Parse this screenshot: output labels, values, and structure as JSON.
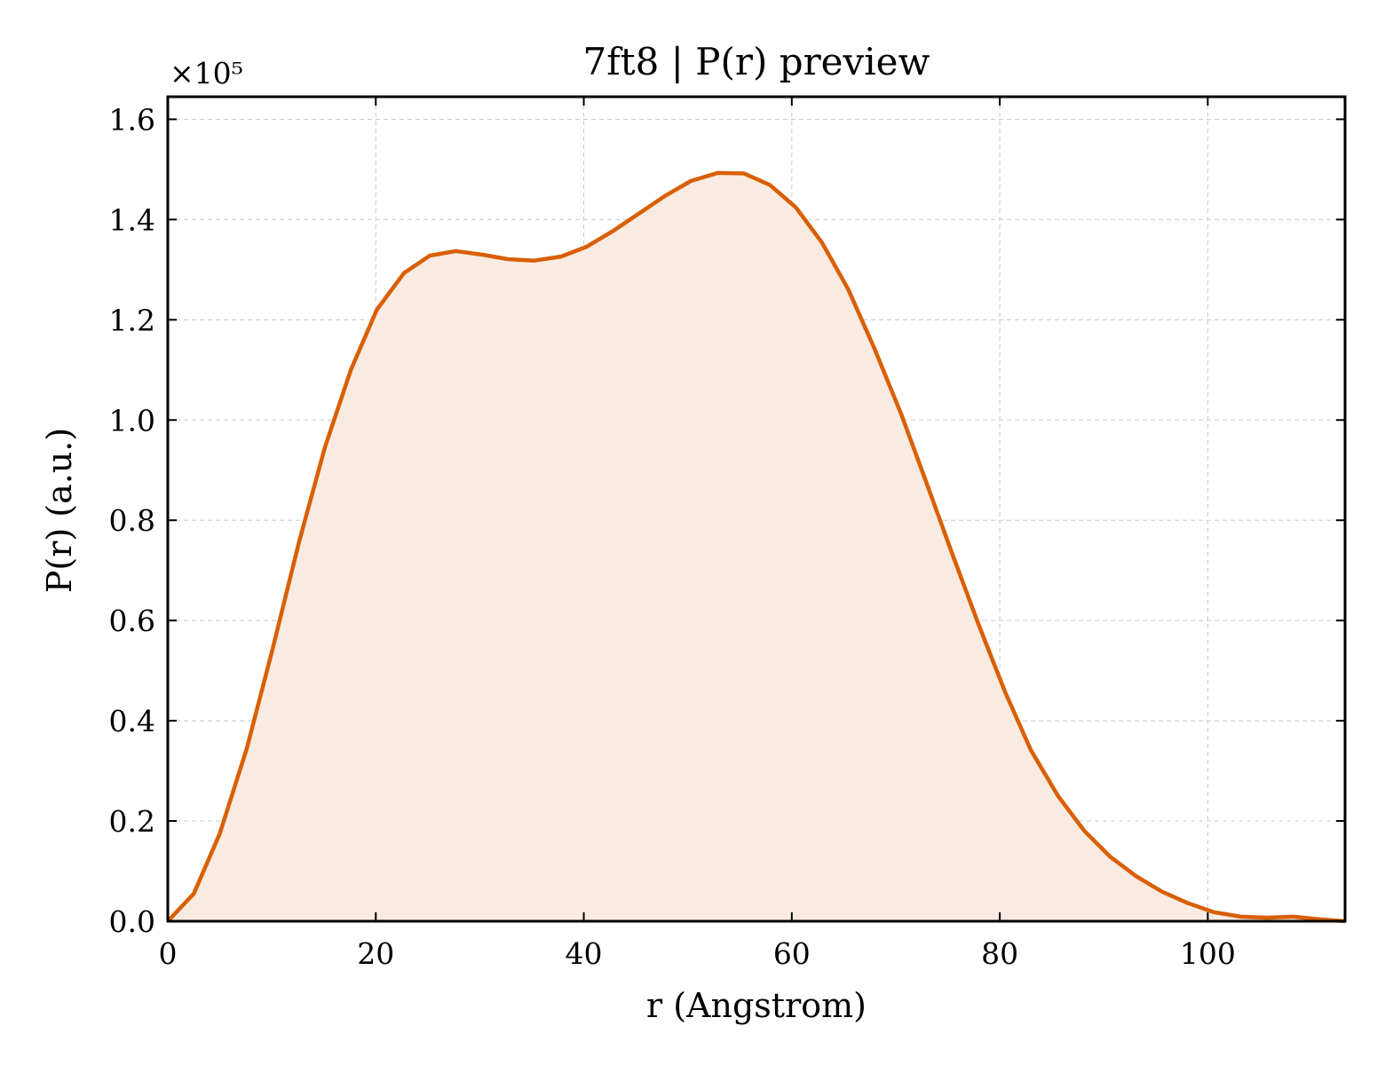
{
  "chart_data": {
    "type": "area",
    "title": "7ft8 | P(r) preview",
    "xlabel": "r (Angstrom)",
    "ylabel": "P(r) (a.u.)",
    "y_offset_label": "×10⁵",
    "y_scale": 100000,
    "xlim": [
      0,
      113.2
    ],
    "ylim": [
      0,
      1.645
    ],
    "x_ticks": [
      0,
      20,
      40,
      60,
      80,
      100
    ],
    "x_tick_labels": [
      "0",
      "20",
      "40",
      "60",
      "80",
      "100"
    ],
    "y_ticks": [
      0.0,
      0.2,
      0.4,
      0.6,
      0.8,
      1.0,
      1.2,
      1.4,
      1.6
    ],
    "y_tick_labels": [
      "0.0",
      "0.2",
      "0.4",
      "0.6",
      "0.8",
      "1.0",
      "1.2",
      "1.4",
      "1.6"
    ],
    "grid": true,
    "series": [
      {
        "color": "#d95f02",
        "fill_color": "#f9ebe1",
        "x": [
          0.0,
          2.5,
          5.0,
          7.6,
          10.1,
          12.6,
          15.1,
          17.6,
          20.1,
          22.7,
          25.2,
          27.7,
          30.2,
          32.7,
          35.2,
          37.8,
          40.3,
          42.8,
          45.3,
          47.8,
          50.3,
          52.9,
          55.4,
          57.9,
          60.4,
          62.9,
          65.4,
          67.9,
          70.5,
          73.0,
          75.5,
          78.0,
          80.5,
          83.0,
          85.6,
          88.1,
          90.6,
          93.1,
          95.6,
          98.1,
          100.6,
          103.2,
          105.7,
          108.2,
          110.7,
          113.2
        ],
        "y": [
          0.0,
          0.055,
          0.175,
          0.345,
          0.545,
          0.755,
          0.945,
          1.1,
          1.22,
          1.293,
          1.328,
          1.337,
          1.33,
          1.321,
          1.318,
          1.326,
          1.346,
          1.377,
          1.412,
          1.447,
          1.477,
          1.493,
          1.492,
          1.469,
          1.424,
          1.354,
          1.262,
          1.145,
          1.013,
          0.872,
          0.729,
          0.59,
          0.458,
          0.341,
          0.25,
          0.181,
          0.129,
          0.09,
          0.059,
          0.036,
          0.018,
          0.009,
          0.007,
          0.009,
          0.004,
          0.0
        ]
      }
    ]
  }
}
